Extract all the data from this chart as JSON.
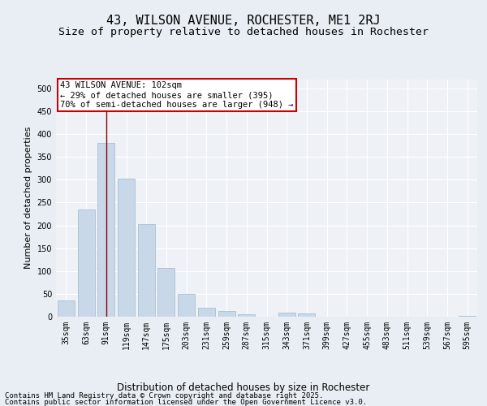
{
  "title1": "43, WILSON AVENUE, ROCHESTER, ME1 2RJ",
  "title2": "Size of property relative to detached houses in Rochester",
  "xlabel": "Distribution of detached houses by size in Rochester",
  "ylabel": "Number of detached properties",
  "categories": [
    "35sqm",
    "63sqm",
    "91sqm",
    "119sqm",
    "147sqm",
    "175sqm",
    "203sqm",
    "231sqm",
    "259sqm",
    "287sqm",
    "315sqm",
    "343sqm",
    "371sqm",
    "399sqm",
    "427sqm",
    "455sqm",
    "483sqm",
    "511sqm",
    "539sqm",
    "567sqm",
    "595sqm"
  ],
  "values": [
    35,
    235,
    380,
    303,
    202,
    107,
    50,
    20,
    13,
    5,
    0,
    9,
    8,
    0,
    0,
    0,
    0,
    0,
    0,
    0,
    2
  ],
  "bar_color": "#c8d8e8",
  "bar_edge_color": "#a0b8cc",
  "vline_x_idx": 2,
  "vline_color": "#8b0000",
  "ylim": [
    0,
    520
  ],
  "yticks": [
    0,
    50,
    100,
    150,
    200,
    250,
    300,
    350,
    400,
    450,
    500
  ],
  "annotation_text": "43 WILSON AVENUE: 102sqm\n← 29% of detached houses are smaller (395)\n70% of semi-detached houses are larger (948) →",
  "annotation_box_facecolor": "#ffffff",
  "annotation_box_edgecolor": "#cc0000",
  "bg_color": "#e8eef4",
  "plot_bg_color": "#eef2f7",
  "grid_color": "#ffffff",
  "footer1": "Contains HM Land Registry data © Crown copyright and database right 2025.",
  "footer2": "Contains public sector information licensed under the Open Government Licence v3.0.",
  "title_fontsize": 11,
  "subtitle_fontsize": 9.5,
  "ylabel_fontsize": 8,
  "xlabel_fontsize": 8.5,
  "tick_fontsize": 7,
  "annotation_fontsize": 7.5,
  "footer_fontsize": 6.5
}
